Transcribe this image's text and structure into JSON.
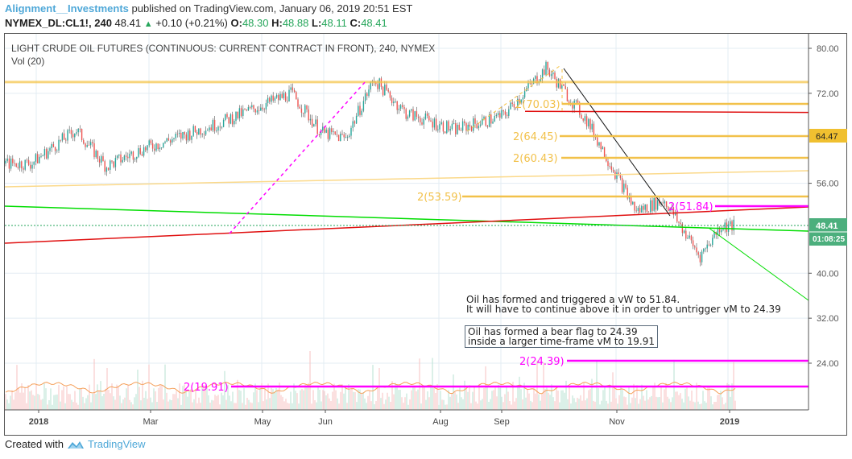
{
  "header": {
    "author": "Alignment__Investments",
    "published_text": "published on TradingView.com, January 06, 2019 20:51 EST",
    "symbol": "NYMEX_DL:CL1!, 240",
    "last": "48.41",
    "change": "+0.10 (+0.21%)",
    "open_label": "O:",
    "open": "48.30",
    "high_label": "H:",
    "high": "48.88",
    "low_label": "L:",
    "low": "48.11",
    "close_label": "C:",
    "close": "48.41"
  },
  "legend": {
    "title": "LIGHT CRUDE OIL FUTURES (CONTINUOUS: CURRENT CONTRACT IN FRONT), 240, NYMEX",
    "volume": "Vol (20)"
  },
  "notes": {
    "note1": "Oil has formed and triggered a vW to 51.84.\nIt will have to continue above it in order to untrigger vM to 24.39",
    "note2": "Oil has formed a bear flag to 24.39\ninside a larger time-frame vM to 19.91"
  },
  "footer": {
    "created_with": "Created with",
    "brand": "TradingView"
  },
  "colors": {
    "up": "#26a69a",
    "down": "#ef5350",
    "gold": "#f5c242",
    "magenta": "#ff00ff",
    "green_line": "#00dd00",
    "red_line": "#e01010",
    "price_badge": "#4caf7d",
    "level_badge": "#f0c030",
    "vol_ma": "#f5a05a"
  },
  "chart_data": {
    "type": "candlestick",
    "title": "LIGHT CRUDE OIL FUTURES (CONTINUOUS: CURRENT CONTRACT IN FRONT), 240, NYMEX",
    "xlabel": "",
    "ylabel": "",
    "x_ticks": [
      "2018",
      "Mar",
      "May",
      "Jun",
      "Aug",
      "Sep",
      "Nov",
      "2019"
    ],
    "y_ticks": [
      "80.00",
      "72.00",
      "56.00",
      "40.00",
      "32.00",
      "24.00"
    ],
    "ylim": [
      16,
      82
    ],
    "current_price": "48.41",
    "countdown": "01:08:25",
    "highlighted_level": "64.47",
    "approx_path": [
      {
        "x": "2018-01-01",
        "close": 59.5
      },
      {
        "x": "2018-01-25",
        "close": 65.5
      },
      {
        "x": "2018-02-10",
        "close": 59.0
      },
      {
        "x": "2018-03-01",
        "close": 62.0
      },
      {
        "x": "2018-04-10",
        "close": 66.5
      },
      {
        "x": "2018-05-20",
        "close": 72.0
      },
      {
        "x": "2018-06-05",
        "close": 65.0
      },
      {
        "x": "2018-06-18",
        "close": 64.0
      },
      {
        "x": "2018-07-03",
        "close": 74.5
      },
      {
        "x": "2018-07-20",
        "close": 68.5
      },
      {
        "x": "2018-08-15",
        "close": 65.5
      },
      {
        "x": "2018-09-10",
        "close": 68.0
      },
      {
        "x": "2018-10-03",
        "close": 76.5
      },
      {
        "x": "2018-10-25",
        "close": 67.0
      },
      {
        "x": "2018-11-20",
        "close": 51.0
      },
      {
        "x": "2018-12-05",
        "close": 53.0
      },
      {
        "x": "2018-12-24",
        "close": 43.0
      },
      {
        "x": "2019-01-04",
        "close": 48.41
      }
    ],
    "annotations": [
      {
        "label": "2(70.03)",
        "price": 70.03,
        "color": "gold"
      },
      {
        "label": "2(64.45)",
        "price": 64.45,
        "color": "gold"
      },
      {
        "label": "2(60.43)",
        "price": 60.43,
        "color": "gold"
      },
      {
        "label": "2(53.59)",
        "price": 53.59,
        "color": "gold"
      },
      {
        "label": "2(51.84)",
        "price": 51.84,
        "color": "magenta"
      },
      {
        "label": "2(24.39)",
        "price": 24.39,
        "color": "magenta"
      },
      {
        "label": "2(19.91)",
        "price": 19.91,
        "color": "magenta"
      }
    ],
    "horizontal_lines": [
      {
        "price": 74.0,
        "color": "gold"
      },
      {
        "price": 68.8,
        "color": "red"
      }
    ],
    "trendlines": [
      {
        "name": "rising-gold",
        "from": [
          55.5,
          "2018-01-01"
        ],
        "to": [
          58.5,
          "2019-02"
        ]
      },
      {
        "name": "falling-green",
        "from": [
          52.0,
          "2018-01-01"
        ],
        "to": [
          46.5,
          "2019-02"
        ]
      },
      {
        "name": "rising-red",
        "from": [
          44.5,
          "2018-01-01"
        ],
        "to": [
          51.5,
          "2019-02"
        ]
      },
      {
        "name": "green-breakdown",
        "from": [
          47.5,
          "2018-12-20"
        ],
        "to": [
          35.0,
          "2019-02"
        ]
      },
      {
        "name": "black-downtrend",
        "from": [
          76.5,
          "2018-10-03"
        ],
        "to": [
          49.5,
          "2018-11-30"
        ]
      }
    ],
    "volume_indicator": "Vol (20)"
  }
}
